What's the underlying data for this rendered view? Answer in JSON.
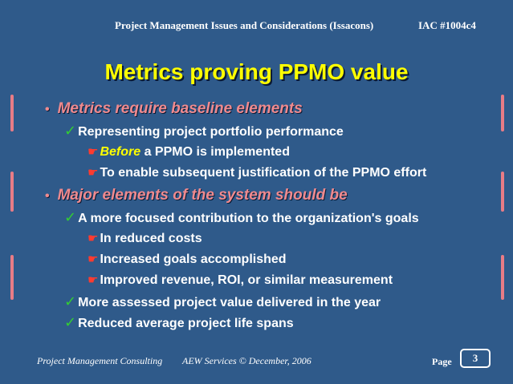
{
  "header": {
    "left": "Project Management Issues and Considerations (Issacons)",
    "right": "IAC #1004c4"
  },
  "title": "Metrics proving PPMO value",
  "bullets": {
    "b1": "Metrics require baseline elements",
    "b1_1": "Representing project portfolio performance",
    "b1_1_1_highlight": "Before",
    "b1_1_1_rest": " a PPMO is implemented",
    "b1_1_2": "To enable subsequent justification of the PPMO effort",
    "b2": "Major elements of the system should be",
    "b2_1": "A more focused contribution to the organization's goals",
    "b2_1_1": "In reduced costs",
    "b2_1_2": "Increased goals accomplished",
    "b2_1_3": "Improved revenue, ROI, or similar measurement",
    "b2_2": "More assessed project value delivered in the year",
    "b2_3": "Reduced average project life spans"
  },
  "symbols": {
    "dot": "•",
    "check": "✓",
    "hand": "☛"
  },
  "footer": {
    "left": "Project Management Consulting",
    "middle": "AEW Services © December, 2006",
    "page_label": "Page",
    "page_number": "3"
  },
  "colors": {
    "background": "#2f5a8a",
    "title": "#ffff00",
    "level1": "#f08a8e",
    "check": "#33cc33",
    "hand": "#ff3b2f"
  }
}
